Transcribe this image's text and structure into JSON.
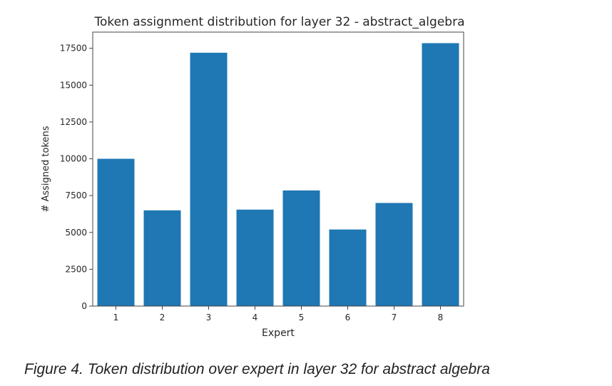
{
  "figure": {
    "caption": "Figure 4. Token distribution over expert in layer 32 for abstract algebra"
  },
  "chart_data": {
    "type": "bar",
    "title": "Token assignment distribution for layer 32 - abstract_algebra",
    "xlabel": "Expert",
    "ylabel": "# Assigned tokens",
    "categories": [
      "1",
      "2",
      "3",
      "4",
      "5",
      "6",
      "7",
      "8"
    ],
    "values": [
      10000,
      6500,
      17200,
      6550,
      7850,
      5200,
      7000,
      17850
    ],
    "ylim": [
      0,
      18600
    ],
    "yticks": [
      0,
      2500,
      5000,
      7500,
      10000,
      12500,
      15000,
      17500
    ],
    "bar_color": "#1f77b4",
    "grid": false,
    "legend": "none"
  }
}
